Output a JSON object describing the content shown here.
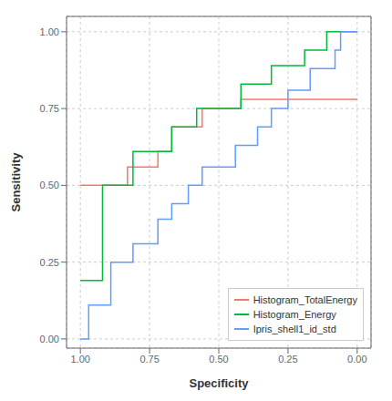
{
  "chart_data": {
    "type": "step",
    "xlabel": "Specificity",
    "ylabel": "Sensitivity",
    "series": [
      {
        "name": "Histogram_TotalEnergy",
        "color": "#F8766D",
        "x": [
          1.0,
          0.97,
          0.94,
          0.92,
          0.89,
          0.86,
          0.83,
          0.81,
          0.78,
          0.75,
          0.72,
          0.69,
          0.67,
          0.64,
          0.61,
          0.58,
          0.56,
          0.53,
          0.5,
          0.47,
          0.44,
          0.42,
          0.39,
          0.36,
          0.33,
          0.31,
          0.28,
          0.25,
          0.22,
          0.19,
          0.17,
          0.14,
          0.11,
          0.08,
          0.06,
          0.0
        ],
        "values": [
          0.5,
          0.5,
          0.5,
          0.5,
          0.5,
          0.5,
          0.5,
          0.56,
          0.56,
          0.56,
          0.56,
          0.61,
          0.61,
          0.69,
          0.69,
          0.69,
          0.69,
          0.75,
          0.75,
          0.75,
          0.75,
          0.75,
          0.78,
          0.78,
          0.78,
          0.78,
          0.78,
          0.78,
          0.78,
          0.78,
          0.78,
          0.78,
          0.78,
          0.78,
          0.78,
          0.78
        ]
      },
      {
        "name": "Histogram_Energy",
        "color": "#00BA38",
        "x": [
          1.0,
          0.97,
          0.94,
          0.92,
          0.89,
          0.86,
          0.83,
          0.81,
          0.78,
          0.75,
          0.72,
          0.69,
          0.67,
          0.64,
          0.61,
          0.58,
          0.56,
          0.53,
          0.5,
          0.47,
          0.44,
          0.42,
          0.39,
          0.36,
          0.33,
          0.31,
          0.28,
          0.25,
          0.22,
          0.19,
          0.17,
          0.14,
          0.11,
          0.08,
          0.06,
          0.03,
          0.0
        ],
        "values": [
          0.19,
          0.19,
          0.19,
          0.19,
          0.5,
          0.5,
          0.5,
          0.5,
          0.61,
          0.61,
          0.61,
          0.61,
          0.61,
          0.69,
          0.69,
          0.69,
          0.75,
          0.75,
          0.75,
          0.75,
          0.75,
          0.75,
          0.83,
          0.83,
          0.83,
          0.83,
          0.89,
          0.89,
          0.89,
          0.89,
          0.94,
          0.94,
          0.94,
          1.0,
          1.0,
          1.0,
          1.0
        ]
      },
      {
        "name": "Ipris_shell1_id_std",
        "color": "#619CFF",
        "x": [
          1.0,
          0.97,
          0.94,
          0.92,
          0.89,
          0.86,
          0.83,
          0.81,
          0.78,
          0.75,
          0.72,
          0.69,
          0.67,
          0.64,
          0.61,
          0.58,
          0.56,
          0.53,
          0.5,
          0.47,
          0.44,
          0.42,
          0.39,
          0.36,
          0.33,
          0.31,
          0.28,
          0.25,
          0.22,
          0.19,
          0.17,
          0.14,
          0.11,
          0.08,
          0.06,
          0.03,
          0.0
        ],
        "values": [
          0.0,
          0.0,
          0.11,
          0.11,
          0.11,
          0.25,
          0.25,
          0.25,
          0.31,
          0.31,
          0.31,
          0.39,
          0.39,
          0.44,
          0.44,
          0.5,
          0.5,
          0.56,
          0.56,
          0.56,
          0.56,
          0.63,
          0.63,
          0.63,
          0.69,
          0.69,
          0.75,
          0.75,
          0.81,
          0.81,
          0.81,
          0.88,
          0.88,
          0.88,
          0.94,
          1.0,
          1.0
        ]
      }
    ],
    "xlim": [
      1.05,
      -0.05
    ],
    "ylim": [
      -0.03,
      1.05
    ],
    "xticks": [
      {
        "value": 1.0,
        "label": "1.00"
      },
      0.75,
      {
        "value": 0.5,
        "label": "0.50"
      },
      0.25,
      {
        "value": 0,
        "label": "0.00"
      }
    ],
    "yticks": [
      {
        "value": 0,
        "label": "0.00"
      },
      0.25,
      {
        "value": 0.5,
        "label": "0.50"
      },
      0.75,
      {
        "value": 1,
        "label": "1.00"
      }
    ],
    "grid": true,
    "legend": "lower right"
  }
}
